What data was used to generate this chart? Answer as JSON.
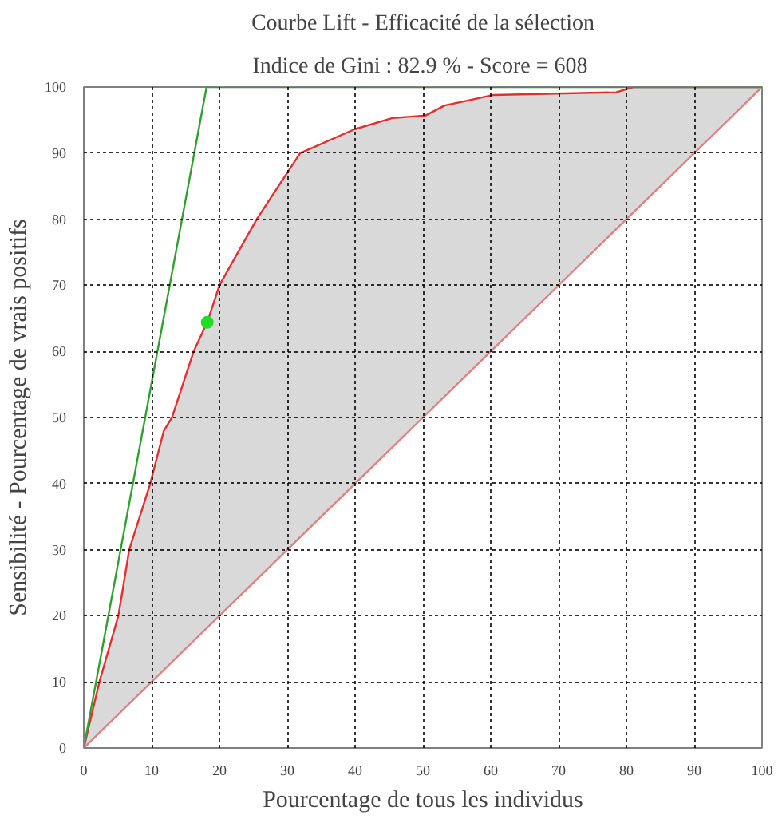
{
  "chart_data": {
    "type": "line",
    "title": "Courbe Lift - Efficacité de la sélection",
    "subtitle": "Indice de Gini :  82.9 % - Score = 608",
    "xlabel": "Pourcentage de tous les individus",
    "ylabel": "Sensibilité - Pourcentage de vrais positifs",
    "xlim": [
      0,
      100
    ],
    "ylim": [
      0,
      100
    ],
    "xticks": [
      0,
      10,
      20,
      30,
      40,
      50,
      60,
      70,
      80,
      90,
      100
    ],
    "yticks": [
      0,
      10,
      20,
      30,
      40,
      50,
      60,
      70,
      80,
      90,
      100
    ],
    "grid": true,
    "line_style": "solid",
    "marker": "none",
    "series": [
      {
        "color": "#e03030",
        "x": [
          0,
          2.3,
          5.1,
          6.7,
          9.8,
          11.8,
          13,
          16.2,
          18.2,
          20,
          25.5,
          31.9,
          39.9,
          45.5,
          50.4,
          53.2,
          56.8,
          60.4,
          69.6,
          78.5,
          81,
          100
        ],
        "values": [
          0,
          10,
          20,
          30,
          40,
          48,
          50,
          60,
          64.4,
          70,
          80,
          90,
          93.6,
          95.3,
          95.7,
          97.2,
          98,
          98.8,
          99,
          99.2,
          100,
          100
        ],
        "lower": [
          0,
          2.3,
          5.1,
          6.7,
          9.8,
          11.8,
          13,
          16.2,
          18.2,
          20,
          25.5,
          31.9,
          39.9,
          45.5,
          50.4,
          53.2,
          56.8,
          60.4,
          69.6,
          78.5,
          81,
          100
        ],
        "upper": [
          0,
          10,
          20,
          30,
          40,
          48,
          50,
          60,
          64.4,
          70,
          80,
          90,
          93.6,
          95.3,
          95.7,
          97.2,
          98,
          98.8,
          99,
          99.2,
          100,
          100
        ]
      },
      {
        "color": "#e08080",
        "x": [
          0,
          50,
          100
        ],
        "values": [
          0,
          50,
          100
        ]
      },
      {
        "color": "#30a030",
        "x": [
          0,
          18.1,
          100
        ],
        "values": [
          0,
          100,
          100
        ]
      },
      {
        "type": "scatter",
        "color": "#22dd22",
        "marker": "circle",
        "x": [
          18.2
        ],
        "values": [
          64.4
        ]
      }
    ]
  }
}
